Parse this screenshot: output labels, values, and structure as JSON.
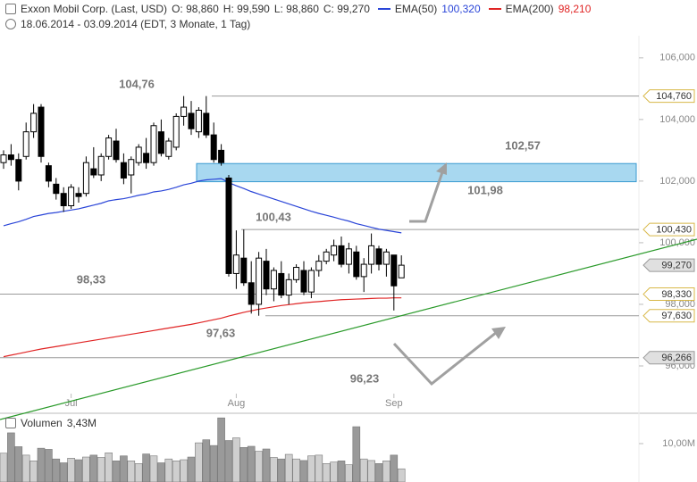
{
  "chart_data": {
    "type": "candlestick",
    "header": {
      "instrument": "Exxon Mobil Corp. (Last, USD)",
      "ohlc": [
        "O: 98,860",
        "H: 99,590",
        "L: 98,860",
        "C: 99,270"
      ],
      "range": "18.06.2014 - 03.09.2014 (EDT, 3 Monate, 1 Tag)"
    },
    "categories": [
      null,
      null,
      null,
      null,
      null,
      null,
      null,
      null,
      null,
      "Jul",
      null,
      null,
      null,
      null,
      null,
      null,
      null,
      null,
      null,
      null,
      null,
      null,
      null,
      null,
      null,
      null,
      null,
      null,
      null,
      null,
      null,
      "Aug",
      null,
      null,
      null,
      null,
      null,
      null,
      null,
      null,
      null,
      null,
      null,
      null,
      null,
      null,
      null,
      null,
      null,
      null,
      null,
      null,
      "Sep",
      null
    ],
    "open": [
      102.6,
      102.85,
      102.7,
      102.8,
      103.6,
      104.4,
      102.5,
      101.9,
      101.6,
      101.2,
      101.6,
      101.6,
      102.4,
      102.2,
      102.8,
      103.3,
      102.6,
      102.2,
      102.6,
      102.9,
      102.6,
      103.6,
      102.8,
      103.1,
      104.1,
      104.2,
      103.6,
      104.2,
      103.5,
      103.0,
      102.1,
      99.0,
      99.5,
      98.7,
      98.0,
      99.4,
      98.5,
      99.0,
      98.3,
      98.8,
      99.1,
      98.4,
      99.1,
      99.4,
      99.6,
      99.9,
      99.3,
      99.7,
      98.9,
      99.3,
      99.8,
      99.3,
      99.6,
      98.86
    ],
    "high": [
      103.0,
      103.2,
      102.9,
      103.9,
      104.5,
      104.5,
      102.6,
      102.1,
      101.8,
      101.9,
      101.8,
      102.8,
      103.1,
      102.9,
      103.5,
      103.7,
      102.9,
      102.8,
      103.2,
      103.4,
      103.9,
      104.0,
      103.4,
      104.2,
      104.76,
      104.6,
      104.4,
      104.76,
      103.9,
      103.2,
      102.2,
      100.4,
      100.43,
      99.4,
      99.7,
      99.8,
      99.2,
      99.4,
      99.0,
      99.3,
      99.4,
      99.2,
      99.6,
      99.8,
      100.1,
      100.2,
      100.0,
      99.9,
      99.5,
      100.3,
      99.9,
      99.8,
      99.6,
      99.59
    ],
    "low": [
      102.4,
      102.5,
      101.7,
      102.7,
      103.4,
      102.6,
      101.8,
      101.4,
      101.0,
      101.1,
      101.3,
      101.5,
      102.1,
      102.0,
      102.7,
      102.6,
      101.9,
      101.6,
      102.5,
      102.4,
      102.5,
      102.8,
      102.7,
      103.0,
      103.8,
      103.5,
      103.4,
      103.4,
      102.6,
      102.5,
      98.9,
      98.5,
      98.6,
      97.7,
      97.63,
      98.3,
      98.1,
      98.2,
      98.0,
      98.7,
      98.3,
      98.2,
      98.9,
      99.3,
      99.4,
      99.2,
      99.0,
      98.8,
      98.4,
      99.0,
      99.1,
      98.9,
      97.8,
      98.86
    ],
    "close": [
      102.85,
      102.7,
      102.0,
      103.6,
      104.2,
      102.8,
      102.0,
      101.6,
      101.2,
      101.8,
      101.5,
      102.6,
      102.2,
      102.8,
      103.4,
      102.7,
      102.1,
      102.7,
      103.1,
      102.6,
      103.8,
      102.9,
      103.3,
      104.1,
      104.4,
      103.7,
      104.3,
      103.5,
      102.7,
      102.6,
      99.0,
      99.6,
      98.7,
      98.0,
      99.5,
      98.5,
      99.1,
      98.3,
      98.8,
      99.2,
      98.4,
      99.1,
      99.4,
      99.7,
      99.9,
      99.3,
      99.8,
      98.9,
      99.3,
      99.9,
      99.3,
      99.7,
      98.6,
      99.27
    ],
    "last_label": "99,270",
    "series": [
      {
        "name": "EMA(50)",
        "legend_value": "100,320",
        "color": "#2a45d8",
        "values": [
          100.55,
          100.62,
          100.68,
          100.76,
          100.85,
          100.9,
          100.95,
          100.98,
          101.02,
          101.06,
          101.1,
          101.16,
          101.22,
          101.28,
          101.36,
          101.4,
          101.43,
          101.48,
          101.54,
          101.58,
          101.65,
          101.68,
          101.73,
          101.8,
          101.88,
          101.93,
          102.0,
          102.04,
          102.06,
          102.08,
          101.95,
          101.85,
          101.76,
          101.66,
          101.58,
          101.5,
          101.42,
          101.34,
          101.26,
          101.18,
          101.1,
          101.02,
          100.95,
          100.89,
          100.83,
          100.76,
          100.7,
          100.62,
          100.56,
          100.5,
          100.44,
          100.4,
          100.36,
          100.32
        ]
      },
      {
        "name": "EMA(200)",
        "legend_value": "98,210",
        "color": "#e02424",
        "values": [
          96.3,
          96.35,
          96.4,
          96.45,
          96.5,
          96.55,
          96.59,
          96.63,
          96.67,
          96.71,
          96.75,
          96.79,
          96.83,
          96.87,
          96.91,
          96.95,
          96.99,
          97.03,
          97.07,
          97.11,
          97.15,
          97.19,
          97.23,
          97.27,
          97.31,
          97.35,
          97.4,
          97.45,
          97.5,
          97.55,
          97.62,
          97.68,
          97.74,
          97.79,
          97.84,
          97.88,
          97.92,
          97.96,
          97.99,
          98.02,
          98.05,
          98.07,
          98.09,
          98.11,
          98.13,
          98.15,
          98.16,
          98.17,
          98.18,
          98.19,
          98.2,
          98.2,
          98.21,
          98.21
        ]
      }
    ],
    "ylim": [
      95.13,
      106.43
    ],
    "yticks": [
      {
        "value": 96,
        "label": "96,000"
      },
      {
        "value": 98,
        "label": "98,000"
      },
      {
        "value": 100,
        "label": "100,000"
      },
      {
        "value": 102,
        "label": "102,000"
      },
      {
        "value": 104,
        "label": "104,000"
      },
      {
        "value": 106,
        "label": "106,000"
      }
    ],
    "levels": [
      {
        "value": 104.76,
        "label": "104,760",
        "style": "marker"
      },
      {
        "value": 100.43,
        "label": "100,430",
        "style": "marker"
      },
      {
        "value": 98.33,
        "label": "98,330",
        "style": "marker"
      },
      {
        "value": 97.63,
        "label": "97,630",
        "style": "marker"
      },
      {
        "value": 96.266,
        "label": "96,266",
        "style": "gray"
      }
    ],
    "zone": {
      "low": 101.98,
      "high": 102.57,
      "color": "#a8d8f0"
    },
    "annotations": [
      "104,76",
      "102,57",
      "101,98",
      "100,43",
      "98,33",
      "97,63",
      "96,23"
    ],
    "volume": {
      "name": "Volumen",
      "legend_value": "3,43M",
      "values": [
        7.5,
        12.8,
        9.2,
        7.0,
        5.5,
        8.8,
        8.5,
        6.0,
        5.0,
        6.2,
        5.8,
        6.5,
        7.0,
        6.4,
        7.6,
        5.5,
        6.8,
        5.5,
        4.8,
        7.3,
        6.8,
        5.0,
        6.0,
        5.5,
        5.8,
        6.5,
        10.2,
        11.0,
        9.5,
        16.7,
        10.8,
        11.5,
        9.0,
        9.3,
        8.0,
        8.6,
        6.4,
        6.0,
        7.2,
        6.0,
        5.6,
        6.8,
        7.0,
        4.8,
        5.2,
        5.5,
        4.5,
        14.4,
        6.0,
        5.6,
        4.8,
        5.5,
        7.0,
        3.43
      ],
      "ylim": [
        0,
        17.9
      ],
      "yticks": [
        {
          "value": 10,
          "label": "10,00M"
        }
      ]
    }
  }
}
